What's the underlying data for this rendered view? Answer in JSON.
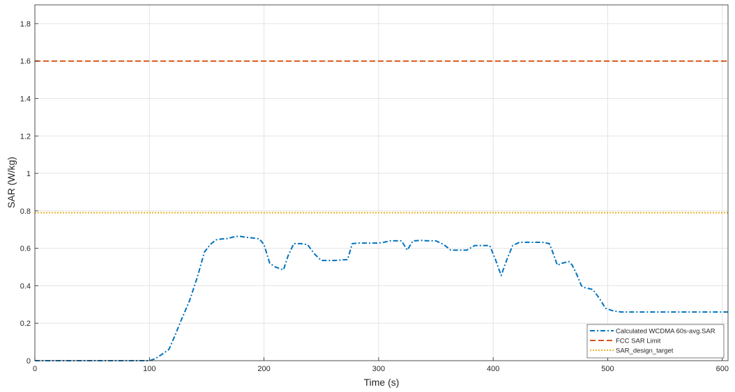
{
  "chart_data": {
    "type": "line",
    "xlabel": "Time (s)",
    "ylabel": "SAR (W/kg)",
    "xlim": [
      0,
      605
    ],
    "ylim": [
      0,
      1.9
    ],
    "xticks": [
      0,
      100,
      200,
      300,
      400,
      500,
      600
    ],
    "yticks": [
      0,
      0.2,
      0.4,
      0.6,
      0.8,
      1,
      1.2,
      1.4,
      1.6,
      1.8
    ],
    "xtick_labels": [
      "0",
      "100",
      "200",
      "300",
      "400",
      "500",
      "600"
    ],
    "ytick_labels": [
      "0",
      "0.2",
      "0.4",
      "0.6",
      "0.8",
      "1",
      "1.2",
      "1.4",
      "1.6",
      "1.8"
    ],
    "grid": true,
    "legend_position": "bottom-right",
    "series": [
      {
        "name": "Calculated WCDMA 60s-avg.SAR",
        "color": "#0072BD",
        "style": "dashdot",
        "x": [
          0,
          100,
          105,
          110,
          117,
          122,
          128,
          135,
          142,
          148,
          153,
          158,
          163,
          168,
          173,
          178,
          183,
          190,
          196,
          200,
          205,
          210,
          217,
          221,
          226,
          232,
          238,
          244,
          250,
          256,
          262,
          268,
          273,
          277,
          283,
          290,
          297,
          303,
          310,
          316,
          320,
          325,
          330,
          337,
          343,
          350,
          357,
          363,
          370,
          377,
          384,
          390,
          397,
          402,
          407,
          412,
          417,
          423,
          430,
          437,
          443,
          449,
          452,
          456,
          460,
          466,
          469,
          473,
          477,
          480,
          487,
          493,
          498,
          505,
          512,
          520,
          540,
          560,
          580,
          605
        ],
        "y": [
          0,
          0,
          0.01,
          0.03,
          0.06,
          0.13,
          0.22,
          0.32,
          0.45,
          0.58,
          0.62,
          0.645,
          0.65,
          0.652,
          0.66,
          0.665,
          0.66,
          0.655,
          0.65,
          0.62,
          0.52,
          0.5,
          0.485,
          0.56,
          0.625,
          0.625,
          0.62,
          0.57,
          0.535,
          0.535,
          0.535,
          0.538,
          0.54,
          0.625,
          0.628,
          0.628,
          0.628,
          0.63,
          0.64,
          0.64,
          0.64,
          0.59,
          0.64,
          0.642,
          0.64,
          0.64,
          0.62,
          0.59,
          0.59,
          0.59,
          0.615,
          0.615,
          0.615,
          0.54,
          0.455,
          0.54,
          0.615,
          0.632,
          0.632,
          0.632,
          0.632,
          0.625,
          0.58,
          0.51,
          0.52,
          0.53,
          0.51,
          0.46,
          0.4,
          0.39,
          0.38,
          0.33,
          0.28,
          0.265,
          0.26,
          0.26,
          0.26,
          0.26,
          0.26,
          0.26
        ]
      },
      {
        "name": "FCC SAR Limit",
        "color": "#D95319",
        "style": "dashed",
        "x": [
          0,
          605
        ],
        "y": [
          1.6,
          1.6
        ]
      },
      {
        "name": "SAR_design_target",
        "color": "#EDB120",
        "style": "dotted",
        "x": [
          0,
          605
        ],
        "y": [
          0.79,
          0.79
        ]
      }
    ]
  }
}
